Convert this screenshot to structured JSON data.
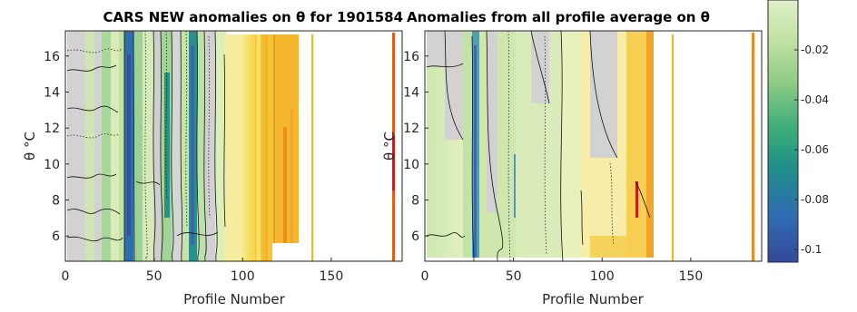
{
  "chart_data": [
    {
      "type": "heatmap",
      "title": "CARS NEW anomalies on θ for 1901584",
      "xlabel": "Profile Number",
      "ylabel": "θ °C",
      "xlim": [
        0,
        190
      ],
      "ylim": [
        4.6,
        17.4
      ],
      "xticks": [
        0,
        50,
        100,
        150
      ],
      "yticks": [
        6,
        8,
        10,
        12,
        14,
        16
      ],
      "grid": false,
      "profiles_with_data": [
        1,
        130
      ],
      "isolated_profiles": [
        141,
        187
      ],
      "region_summary": [
        {
          "x": [
            1,
            22
          ],
          "anomaly": -0.025
        },
        {
          "x": [
            22,
            40
          ],
          "anomaly": -0.065
        },
        {
          "x": [
            40,
            60
          ],
          "anomaly": -0.04
        },
        {
          "x": [
            60,
            80
          ],
          "anomaly": -0.05
        },
        {
          "x": [
            80,
            130
          ],
          "anomaly": 0.0
        }
      ]
    },
    {
      "type": "heatmap",
      "title": "Anomalies from all profile average on θ",
      "xlabel": "Profile Number",
      "ylabel": "θ °C",
      "xlim": [
        0,
        190
      ],
      "ylim": [
        4.6,
        17.4
      ],
      "xticks": [
        0,
        50,
        100,
        150
      ],
      "yticks": [
        6,
        8,
        10,
        12,
        14,
        16
      ],
      "grid": false,
      "profiles_with_data": [
        1,
        130
      ],
      "isolated_profiles": [
        141,
        187
      ],
      "region_summary": [
        {
          "x": [
            1,
            22
          ],
          "anomaly": -0.03
        },
        {
          "x": [
            22,
            30
          ],
          "anomaly": -0.065
        },
        {
          "x": [
            30,
            80
          ],
          "anomaly": -0.03
        },
        {
          "x": [
            80,
            130
          ],
          "anomaly": -0.005
        }
      ]
    }
  ],
  "colorbar": {
    "ticks": [
      -0.02,
      -0.04,
      -0.06,
      -0.08,
      -0.1
    ],
    "tick_labels": [
      "-0.02",
      "-0.04",
      "-0.06",
      "-0.08",
      "-0.1"
    ],
    "range": [
      -0.105,
      0.0
    ]
  },
  "colors": {
    "cold": "#3b4fa0",
    "mid": "#2a9a7e",
    "light": "#c8e6a0",
    "warm": "#f2a41c",
    "hot": "#c81e1e",
    "nodata": "#d0d0d0"
  }
}
